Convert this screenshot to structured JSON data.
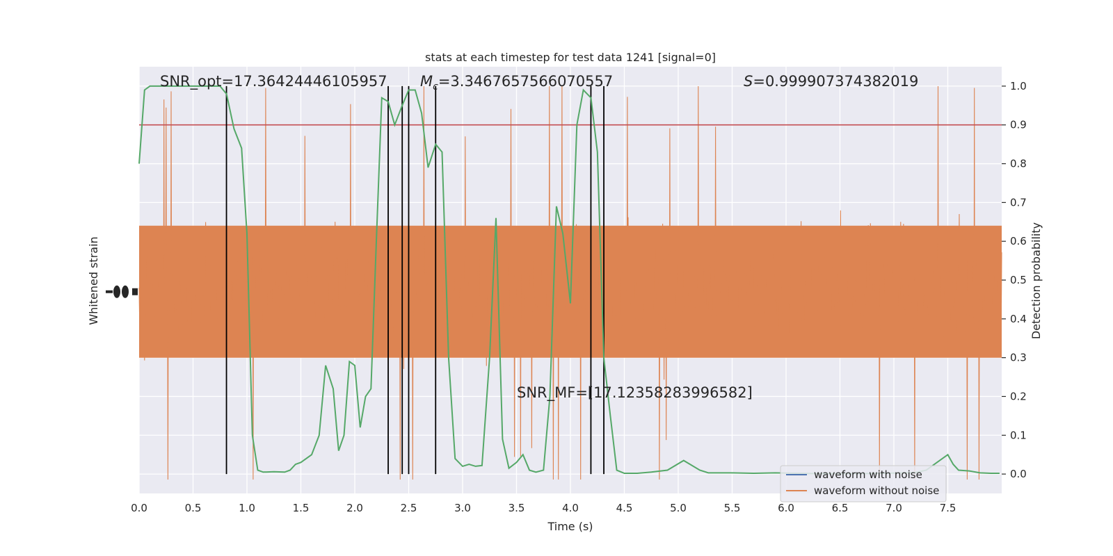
{
  "chart_data": {
    "type": "line",
    "title": "stats at each timestep for test data 1241 [signal=0]",
    "xlabel": "Time (s)",
    "ylabel_left": "Whitened strain",
    "ylabel_right": "Detection probability",
    "xlim": [
      0,
      8
    ],
    "ylim_right": [
      -0.05,
      1.05
    ],
    "xticks": [
      0.0,
      0.5,
      1.0,
      1.5,
      2.0,
      2.5,
      3.0,
      3.5,
      4.0,
      4.5,
      5.0,
      5.5,
      6.0,
      6.5,
      7.0,
      7.5
    ],
    "xtick_labels": [
      "0.0",
      "0.5",
      "1.0",
      "1.5",
      "2.0",
      "2.5",
      "3.0",
      "3.5",
      "4.0",
      "4.5",
      "5.0",
      "5.5",
      "6.0",
      "6.5",
      "7.0",
      "7.5"
    ],
    "yticks_right": [
      0.0,
      0.1,
      0.2,
      0.3,
      0.4,
      0.5,
      0.6,
      0.7,
      0.8,
      0.9,
      1.0
    ],
    "ytick_labels_right": [
      "0.0",
      "0.1",
      "0.2",
      "0.3",
      "0.4",
      "0.5",
      "0.6",
      "0.7",
      "0.8",
      "0.9",
      "1.0"
    ],
    "annotations": {
      "snr_opt": "SNR_opt=17.36424446105957",
      "mc_symbol": "M",
      "mc_subscript": "c",
      "mc_value": "=3.3467657566070557",
      "s_symbol": "S",
      "s_value": "=0.999907374382019",
      "snr_mf": "SNR_MF=[17.12358283996582]"
    },
    "threshold": 0.9,
    "vlines": [
      0.81,
      2.31,
      2.44,
      2.5,
      2.75,
      4.19,
      4.31
    ],
    "detection_probability": {
      "x": [
        0.0,
        0.05,
        0.1,
        0.2,
        0.3,
        0.4,
        0.5,
        0.6,
        0.7,
        0.75,
        0.81,
        0.88,
        0.95,
        1.0,
        1.05,
        1.1,
        1.15,
        1.25,
        1.35,
        1.4,
        1.45,
        1.5,
        1.6,
        1.67,
        1.73,
        1.8,
        1.85,
        1.9,
        1.95,
        2.0,
        2.05,
        2.1,
        2.15,
        2.2,
        2.25,
        2.31,
        2.37,
        2.44,
        2.5,
        2.56,
        2.62,
        2.68,
        2.75,
        2.81,
        2.87,
        2.93,
        3.0,
        3.06,
        3.12,
        3.18,
        3.25,
        3.31,
        3.37,
        3.43,
        3.5,
        3.56,
        3.62,
        3.68,
        3.75,
        3.81,
        3.87,
        3.93,
        4.0,
        4.06,
        4.12,
        4.19,
        4.25,
        4.31,
        4.37,
        4.43,
        4.5,
        4.56,
        4.62,
        4.75,
        4.9,
        5.05,
        5.2,
        5.28,
        5.35,
        5.5,
        5.7,
        5.9,
        6.1,
        6.3,
        6.5,
        6.7,
        6.9,
        7.1,
        7.2,
        7.3,
        7.4,
        7.5,
        7.55,
        7.6,
        7.7,
        7.8,
        7.9,
        7.98
      ],
      "values": [
        0.8,
        0.99,
        1.0,
        1.0,
        1.0,
        1.0,
        1.0,
        1.0,
        1.0,
        1.0,
        0.98,
        0.89,
        0.84,
        0.62,
        0.1,
        0.01,
        0.005,
        0.006,
        0.005,
        0.01,
        0.025,
        0.03,
        0.05,
        0.1,
        0.28,
        0.22,
        0.06,
        0.1,
        0.29,
        0.28,
        0.12,
        0.2,
        0.22,
        0.6,
        0.97,
        0.96,
        0.9,
        0.95,
        0.99,
        0.99,
        0.93,
        0.79,
        0.85,
        0.83,
        0.3,
        0.04,
        0.02,
        0.025,
        0.02,
        0.022,
        0.3,
        0.66,
        0.09,
        0.015,
        0.03,
        0.05,
        0.01,
        0.005,
        0.01,
        0.2,
        0.69,
        0.62,
        0.44,
        0.9,
        0.99,
        0.97,
        0.83,
        0.3,
        0.15,
        0.01,
        0.002,
        0.002,
        0.002,
        0.005,
        0.01,
        0.035,
        0.01,
        0.003,
        0.003,
        0.003,
        0.002,
        0.003,
        0.002,
        0.001,
        0.001,
        0.001,
        0.002,
        0.003,
        0.004,
        0.01,
        0.03,
        0.05,
        0.025,
        0.01,
        0.008,
        0.003,
        0.002,
        0.002
      ]
    },
    "series": [
      {
        "name": "waveform with noise",
        "color": "#4c72b0"
      },
      {
        "name": "waveform without noise",
        "color": "#dd8452"
      }
    ],
    "detection_color": "#55a868",
    "threshold_color": "#c44e52",
    "grid": true,
    "legend_position": "lower-right"
  }
}
